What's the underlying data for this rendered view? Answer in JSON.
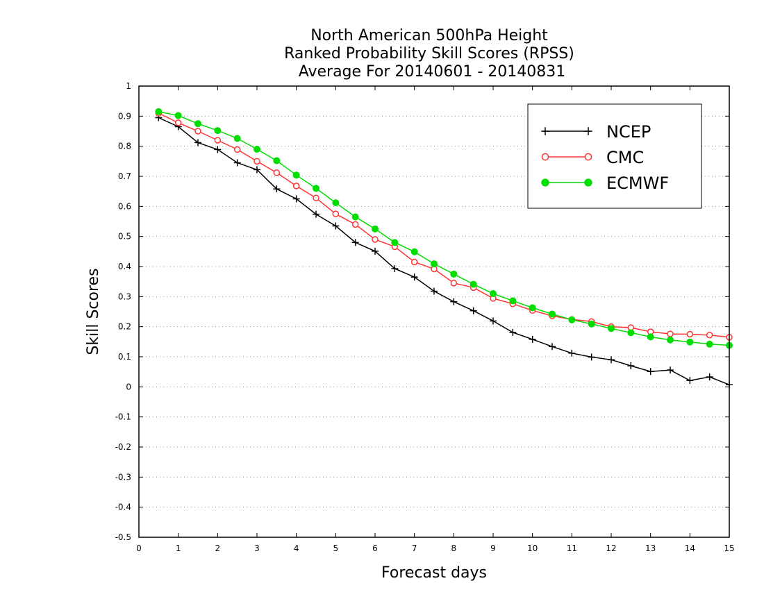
{
  "chart_data": {
    "type": "line",
    "title": [
      "North American 500hPa Height",
      "Ranked Probability Skill Scores (RPSS)",
      "Average For 20140601 - 20140831"
    ],
    "xlabel": "Forecast days",
    "ylabel": "Skill Scores",
    "xlim": [
      0,
      15
    ],
    "ylim": [
      -0.5,
      1
    ],
    "xticks": [
      0,
      1,
      2,
      3,
      4,
      5,
      6,
      7,
      8,
      9,
      10,
      11,
      12,
      13,
      14,
      15
    ],
    "xtick_labels": [
      "0",
      "1",
      "2",
      "3",
      "4",
      "5",
      "6",
      "7",
      "8",
      "9",
      "10",
      "11",
      "12",
      "13",
      "14",
      "15"
    ],
    "yticks": [
      -0.5,
      -0.4,
      -0.3,
      -0.2,
      -0.1,
      0,
      0.1,
      0.2,
      0.3,
      0.4,
      0.5,
      0.6,
      0.7,
      0.8,
      0.9,
      1
    ],
    "ytick_labels": [
      "-0.5",
      "-0.4",
      "-0.3",
      "-0.2",
      "-0.1",
      "0",
      "0.1",
      "0.2",
      "0.3",
      "0.4",
      "0.5",
      "0.6",
      "0.7",
      "0.8",
      "0.9",
      "1"
    ],
    "grid": "horizontal-dotted",
    "legend_position": "top-right",
    "x": [
      0.5,
      1,
      1.5,
      2,
      2.5,
      3,
      3.5,
      4,
      4.5,
      5,
      5.5,
      6,
      6.5,
      7,
      7.5,
      8,
      8.5,
      9,
      9.5,
      10,
      10.5,
      11,
      11.5,
      12,
      12.5,
      13,
      13.5,
      14,
      14.5,
      15
    ],
    "series": [
      {
        "name": "NCEP",
        "color": "#000000",
        "marker": "plus",
        "values": [
          0.895,
          0.865,
          0.812,
          0.789,
          0.745,
          0.722,
          0.658,
          0.625,
          0.574,
          0.535,
          0.48,
          0.451,
          0.393,
          0.365,
          0.318,
          0.283,
          0.253,
          0.219,
          0.181,
          0.158,
          0.134,
          0.112,
          0.099,
          0.09,
          0.07,
          0.051,
          0.056,
          0.021,
          0.033,
          0.007
        ]
      },
      {
        "name": "CMC",
        "color": "#ff3333",
        "marker": "open-circle",
        "values": [
          0.91,
          0.878,
          0.85,
          0.82,
          0.789,
          0.75,
          0.712,
          0.668,
          0.628,
          0.575,
          0.54,
          0.49,
          0.466,
          0.415,
          0.392,
          0.345,
          0.33,
          0.294,
          0.276,
          0.254,
          0.236,
          0.224,
          0.217,
          0.2,
          0.197,
          0.183,
          0.176,
          0.175,
          0.172,
          0.165
        ]
      },
      {
        "name": "ECMWF",
        "color": "#00dd00",
        "marker": "filled-circle",
        "values": [
          0.915,
          0.902,
          0.875,
          0.852,
          0.826,
          0.79,
          0.752,
          0.704,
          0.66,
          0.612,
          0.565,
          0.525,
          0.48,
          0.449,
          0.409,
          0.375,
          0.341,
          0.31,
          0.286,
          0.263,
          0.242,
          0.223,
          0.209,
          0.194,
          0.18,
          0.166,
          0.156,
          0.149,
          0.142,
          0.138
        ]
      }
    ]
  }
}
